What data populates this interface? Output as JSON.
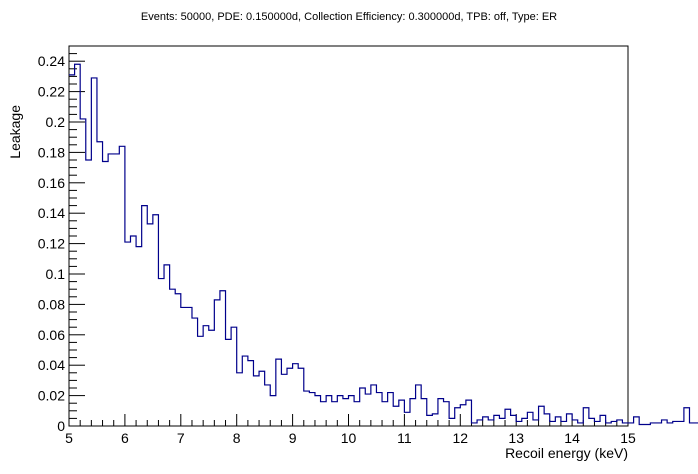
{
  "chart_data": {
    "type": "histogram",
    "title": "Events: 50000, PDE: 0.150000d, Collection Efficiency: 0.300000d, TPB: off, Type: ER",
    "xlabel": "Recoil energy (keV)",
    "ylabel": "Leakage",
    "xlim": [
      5,
      15
    ],
    "ylim": [
      0,
      0.25
    ],
    "bin_width": 0.1,
    "x_ticks": [
      "5",
      "6",
      "7",
      "8",
      "9",
      "10",
      "11",
      "12",
      "13",
      "14",
      "15"
    ],
    "y_ticks": [
      "0",
      "0.02",
      "0.04",
      "0.06",
      "0.08",
      "0.1",
      "0.12",
      "0.14",
      "0.16",
      "0.18",
      "0.2",
      "0.22",
      "0.24"
    ],
    "line_color": "#00008b",
    "grid": false,
    "values": [
      0.231,
      0.238,
      0.202,
      0.175,
      0.229,
      0.187,
      0.174,
      0.179,
      0.179,
      0.184,
      0.121,
      0.125,
      0.118,
      0.145,
      0.133,
      0.139,
      0.097,
      0.106,
      0.09,
      0.087,
      0.078,
      0.078,
      0.071,
      0.059,
      0.066,
      0.063,
      0.083,
      0.089,
      0.057,
      0.065,
      0.035,
      0.046,
      0.043,
      0.033,
      0.036,
      0.027,
      0.02,
      0.044,
      0.034,
      0.038,
      0.041,
      0.038,
      0.023,
      0.022,
      0.02,
      0.016,
      0.02,
      0.016,
      0.02,
      0.018,
      0.02,
      0.016,
      0.025,
      0.021,
      0.027,
      0.022,
      0.016,
      0.022,
      0.013,
      0.017,
      0.009,
      0.018,
      0.027,
      0.018,
      0.007,
      0.008,
      0.018,
      0.016,
      0.005,
      0.012,
      0.014,
      0.017,
      0.002,
      0.004,
      0.006,
      0.004,
      0.007,
      0.005,
      0.011,
      0.007,
      0.003,
      0.005,
      0.009,
      0.004,
      0.013,
      0.008,
      0.003,
      0.006,
      0.003,
      0.008,
      0.004,
      0.002,
      0.012,
      0.005,
      0.003,
      0.007,
      0.002,
      0.003,
      0.004,
      0.002,
      0.002,
      0.006,
      0.001,
      0.001,
      0.002,
      0.002,
      0.004,
      0.002,
      0.003,
      0.003,
      0.012,
      0.002,
      0.002,
      0.005,
      0.001,
      0.002
    ]
  }
}
